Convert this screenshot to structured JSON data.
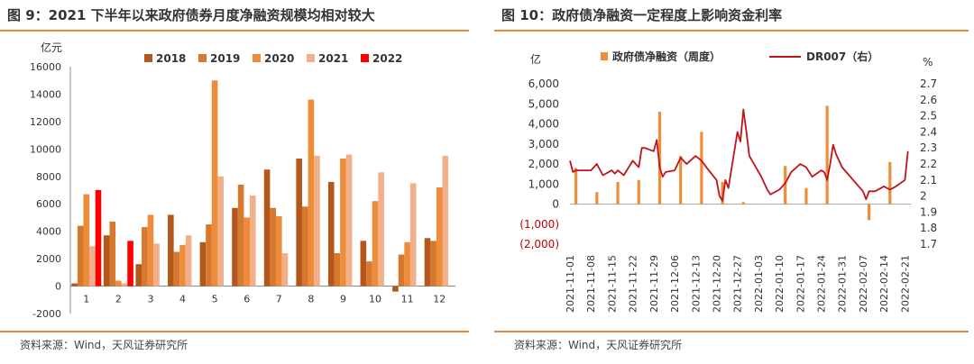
{
  "figures": [
    {
      "title": "图 9：2021 下半年以来政府债券月度净融资规模均相对较大",
      "source": "资料来源：Wind，天风证券研究所"
    },
    {
      "title": "图 10：政府债净融资一定程度上影响资金利率",
      "source": "资料来源：Wind，天风证券研究所"
    }
  ],
  "chart_data": [
    {
      "type": "bar",
      "yunit": "亿元",
      "categories": [
        "1",
        "2",
        "3",
        "4",
        "5",
        "6",
        "7",
        "8",
        "9",
        "10",
        "11",
        "12"
      ],
      "ylim": [
        -2000,
        16000
      ],
      "yticks": [
        -2000,
        0,
        2000,
        4000,
        6000,
        8000,
        10000,
        12000,
        14000,
        16000
      ],
      "legend_position": "top",
      "grid": false,
      "series": [
        {
          "name": "2018",
          "color": "#b4571c",
          "values": [
            200,
            3700,
            1600,
            5200,
            3200,
            5700,
            8500,
            9300,
            7600,
            3300,
            -400,
            3500
          ]
        },
        {
          "name": "2019",
          "color": "#d6782e",
          "values": [
            4400,
            4700,
            4300,
            2500,
            4500,
            7400,
            5700,
            5800,
            2400,
            1800,
            2300,
            3300
          ]
        },
        {
          "name": "2020",
          "color": "#ee8c3a",
          "values": [
            6700,
            400,
            5200,
            3000,
            15000,
            5000,
            5100,
            13600,
            9300,
            6200,
            3200,
            7200
          ]
        },
        {
          "name": "2021",
          "color": "#f2b08a",
          "values": [
            2900,
            200,
            3100,
            3700,
            8000,
            6600,
            2400,
            9500,
            9600,
            8300,
            7500,
            9500
          ]
        },
        {
          "name": "2022",
          "color": "#ff0000",
          "values": [
            7000,
            3300,
            null,
            null,
            null,
            null,
            null,
            null,
            null,
            null,
            null,
            null
          ]
        }
      ]
    },
    {
      "type": "bar+line",
      "left_unit": "亿",
      "right_unit": "%",
      "ylim_left": [
        -2000,
        6000
      ],
      "yticks_left": [
        -2000,
        -1000,
        0,
        1000,
        2000,
        3000,
        4000,
        5000,
        6000
      ],
      "yticklabels_left": [
        "(2,000)",
        "(1,000)",
        "0",
        "1,000",
        "2,000",
        "3,000",
        "4,000",
        "5,000",
        "6,000"
      ],
      "ylim_right": [
        1.7,
        2.7
      ],
      "yticks_right": [
        1.7,
        1.8,
        1.9,
        2.0,
        2.1,
        2.2,
        2.3,
        2.4,
        2.5,
        2.6,
        2.7
      ],
      "yticklabels_right": [
        "1.7",
        "1.8",
        "1.9",
        "2",
        "2.1",
        "2.2",
        "2.3",
        "2.4",
        "2.5",
        "2.6",
        "2.7"
      ],
      "x_ticks": [
        "2021-11-01",
        "2021-11-08",
        "2021-11-15",
        "2021-11-22",
        "2021-11-29",
        "2021-12-06",
        "2021-12-13",
        "2021-12-20",
        "2021-12-27",
        "2022-01-03",
        "2022-01-10",
        "2022-01-17",
        "2022-01-24",
        "2022-01-31",
        "2022-02-07",
        "2022-02-14",
        "2022-02-21"
      ],
      "x_range": [
        "2021-11-01",
        "2022-02-23"
      ],
      "legend_position": "top",
      "grid": false,
      "bar_series": {
        "name": "政府债净融资（周度）",
        "color": "#ee8c3a",
        "x": [
          "2021-11-03",
          "2021-11-10",
          "2021-11-17",
          "2021-11-24",
          "2021-12-01",
          "2021-12-08",
          "2021-12-15",
          "2021-12-22",
          "2021-12-29",
          "2022-01-12",
          "2022-01-19",
          "2022-01-26",
          "2022-02-09",
          "2022-02-16"
        ],
        "values": [
          1800,
          600,
          1100,
          1200,
          4600,
          2400,
          3600,
          1100,
          100,
          1900,
          800,
          4900,
          -800,
          2100
        ]
      },
      "line_series": {
        "name": "DR007（右）",
        "color": "#c0141c",
        "x": [
          "2021-11-01",
          "2021-11-02",
          "2021-11-03",
          "2021-11-05",
          "2021-11-08",
          "2021-11-10",
          "2021-11-12",
          "2021-11-15",
          "2021-11-16",
          "2021-11-17",
          "2021-11-19",
          "2021-11-22",
          "2021-11-24",
          "2021-11-25",
          "2021-11-26",
          "2021-11-29",
          "2021-11-30",
          "2021-12-01",
          "2021-12-02",
          "2021-12-03",
          "2021-12-06",
          "2021-12-08",
          "2021-12-10",
          "2021-12-13",
          "2021-12-15",
          "2021-12-17",
          "2021-12-20",
          "2021-12-21",
          "2021-12-22",
          "2021-12-23",
          "2021-12-24",
          "2021-12-27",
          "2021-12-28",
          "2021-12-29",
          "2021-12-30",
          "2021-12-31",
          "2022-01-04",
          "2022-01-06",
          "2022-01-07",
          "2022-01-10",
          "2022-01-12",
          "2022-01-14",
          "2022-01-17",
          "2022-01-19",
          "2022-01-21",
          "2022-01-24",
          "2022-01-25",
          "2022-01-26",
          "2022-01-27",
          "2022-01-28",
          "2022-01-29",
          "2022-01-30",
          "2022-01-31",
          "2022-02-07",
          "2022-02-08",
          "2022-02-09",
          "2022-02-11",
          "2022-02-14",
          "2022-02-16",
          "2022-02-18",
          "2022-02-21",
          "2022-02-22"
        ],
        "values": [
          2.22,
          2.15,
          2.16,
          2.16,
          2.16,
          2.2,
          2.13,
          2.16,
          2.14,
          2.16,
          2.13,
          2.22,
          2.18,
          2.3,
          2.3,
          2.28,
          2.35,
          2.18,
          2.12,
          2.15,
          2.16,
          2.24,
          2.2,
          2.25,
          2.22,
          2.17,
          2.1,
          2.0,
          1.97,
          2.1,
          2.05,
          2.4,
          2.34,
          2.54,
          2.4,
          2.25,
          2.12,
          2.04,
          2.01,
          2.04,
          2.08,
          2.15,
          2.2,
          2.18,
          2.12,
          2.16,
          2.15,
          2.1,
          2.2,
          2.32,
          2.26,
          2.22,
          2.18,
          2.03,
          1.98,
          2.03,
          2.03,
          2.06,
          2.04,
          2.06,
          2.1,
          2.28
        ]
      }
    }
  ]
}
